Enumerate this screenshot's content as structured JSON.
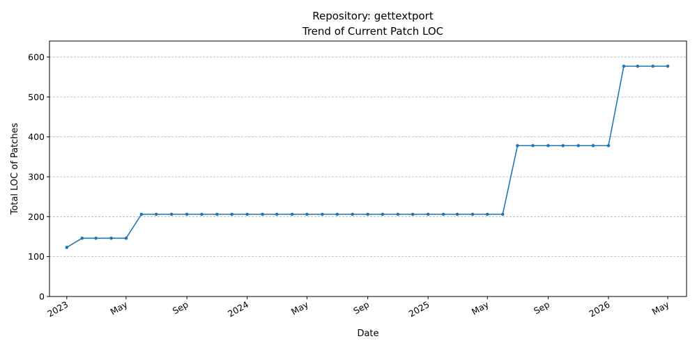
{
  "chart_data": {
    "type": "line",
    "title": "Repository: gettextport",
    "subtitle": "Trend of Current Patch LOC",
    "xlabel": "Date",
    "ylabel": "Total LOC of Patches",
    "ylim": [
      0,
      640
    ],
    "xlim": [
      "2022-11-27",
      "2026-06-08"
    ],
    "grid": "horizontal dashed",
    "line_color": "#1f77b4",
    "y_ticks": [
      0,
      100,
      200,
      300,
      400,
      500,
      600
    ],
    "x_ticks": [
      {
        "date": "2023-01-01",
        "label": "2023"
      },
      {
        "date": "2023-05-01",
        "label": "May"
      },
      {
        "date": "2023-09-01",
        "label": "Sep"
      },
      {
        "date": "2024-01-01",
        "label": "2024"
      },
      {
        "date": "2024-05-01",
        "label": "May"
      },
      {
        "date": "2024-09-01",
        "label": "Sep"
      },
      {
        "date": "2025-01-01",
        "label": "2025"
      },
      {
        "date": "2025-05-01",
        "label": "May"
      },
      {
        "date": "2025-09-01",
        "label": "Sep"
      },
      {
        "date": "2026-01-01",
        "label": "2026"
      },
      {
        "date": "2026-05-01",
        "label": "May"
      }
    ],
    "series": [
      {
        "x": [
          "2023-01-01",
          "2023-02-01",
          "2023-03-01",
          "2023-04-01",
          "2023-05-01",
          "2023-06-01",
          "2023-07-01",
          "2023-08-01",
          "2023-09-01",
          "2023-10-01",
          "2023-11-01",
          "2023-12-01",
          "2024-01-01",
          "2024-02-01",
          "2024-03-01",
          "2024-04-01",
          "2024-05-01",
          "2024-06-01",
          "2024-07-01",
          "2024-08-01",
          "2024-09-01",
          "2024-10-01",
          "2024-11-01",
          "2024-12-01",
          "2025-01-01",
          "2025-02-01",
          "2025-03-01",
          "2025-04-01",
          "2025-05-01",
          "2025-06-01",
          "2025-07-01",
          "2025-08-01",
          "2025-09-01",
          "2025-10-01",
          "2025-11-01",
          "2025-12-01",
          "2026-01-01",
          "2026-02-01",
          "2026-03-01",
          "2026-04-01",
          "2026-05-01"
        ],
        "values": [
          123,
          146,
          146,
          146,
          146,
          206,
          206,
          206,
          206,
          206,
          206,
          206,
          206,
          206,
          206,
          206,
          206,
          206,
          206,
          206,
          206,
          206,
          206,
          206,
          206,
          206,
          206,
          206,
          206,
          206,
          378,
          378,
          378,
          378,
          378,
          378,
          378,
          577,
          577,
          577,
          577
        ]
      }
    ]
  }
}
